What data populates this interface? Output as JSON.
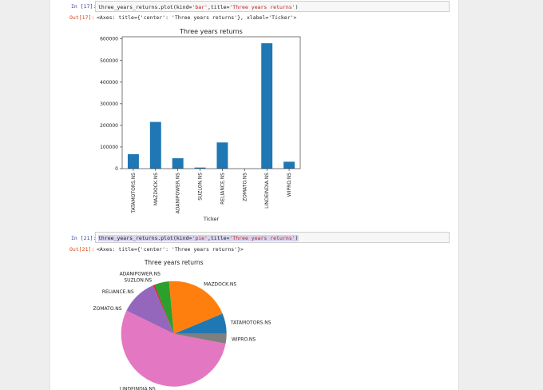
{
  "cells": [
    {
      "in_prompt": "In [17]:",
      "code_pre": "three_years_returns.plot(kind=",
      "code_kind": "'bar'",
      "code_mid": ",title=",
      "code_title": "'Three years returns'",
      "code_post": ")",
      "out_prompt": "Out[17]:",
      "out_text": "<Axes: title={'center': 'Three years returns'}, xlabel='Ticker'>"
    },
    {
      "in_prompt": "In [21]:",
      "code_pre": "three_years_returns.plot(kind=",
      "code_kind": "'pie'",
      "code_mid": ",title=",
      "code_title": "'Three years returns'",
      "code_post": ")",
      "out_prompt": "Out[21]:",
      "out_text": "<Axes: title={'center': 'Three years returns'}>"
    }
  ],
  "chart_data": [
    {
      "type": "bar",
      "title": "Three years returns",
      "xlabel": "Ticker",
      "ylabel": "",
      "categories": [
        "TATAMOTORS.NS",
        "MAZDOCK.NS",
        "ADANIPOWER.NS",
        "SUZLON.NS",
        "RELIANCE.NS",
        "ZOMATO.NS",
        "LINDEINDIA.NS",
        "WIPRO.NS"
      ],
      "values": [
        67000,
        216000,
        48000,
        5000,
        121000,
        0,
        580000,
        32000
      ],
      "ylim": [
        0,
        610000
      ],
      "yticks": [
        0,
        100000,
        200000,
        300000,
        400000,
        500000,
        600000
      ],
      "color": "#1f77b4",
      "grid": false
    },
    {
      "type": "pie",
      "title": "Three years returns",
      "labels": [
        "TATAMOTORS.NS",
        "MAZDOCK.NS",
        "ADANIPOWER.NS",
        "SUZLON.NS",
        "RELIANCE.NS",
        "ZOMATO.NS",
        "LINDEINDIA.NS",
        "WIPRO.NS"
      ],
      "values": [
        67000,
        216000,
        48000,
        5000,
        121000,
        0,
        580000,
        32000
      ],
      "colors": [
        "#1f77b4",
        "#ff7f0e",
        "#2ca02c",
        "#d62728",
        "#9467bd",
        "#8c564b",
        "#e377c2",
        "#7f7f7f"
      ]
    }
  ]
}
